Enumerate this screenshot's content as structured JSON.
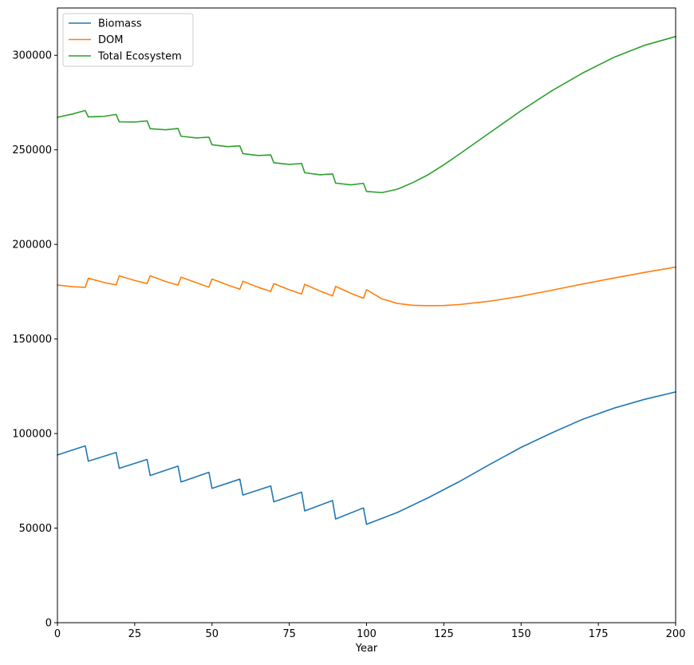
{
  "chart_data": {
    "type": "line",
    "title": "",
    "xlabel": "Year",
    "ylabel": "",
    "xlim": [
      0,
      200
    ],
    "ylim": [
      0,
      325000
    ],
    "xticks": [
      0,
      25,
      50,
      75,
      100,
      125,
      150,
      175,
      200
    ],
    "yticks": [
      0,
      50000,
      100000,
      150000,
      200000,
      250000,
      300000
    ],
    "grid": false,
    "legend_position": "top-left",
    "series": [
      {
        "name": "Biomass",
        "color": "#1f77b4",
        "x": [
          0,
          9,
          10,
          19,
          20,
          29,
          30,
          39,
          40,
          49,
          50,
          59,
          60,
          69,
          70,
          79,
          80,
          89,
          90,
          99,
          100,
          110,
          120,
          130,
          140,
          150,
          160,
          170,
          180,
          190,
          200
        ],
        "y": [
          88700,
          93500,
          85400,
          90000,
          81600,
          86300,
          77800,
          82800,
          74400,
          79500,
          71000,
          75900,
          67500,
          72300,
          63900,
          69000,
          59100,
          64600,
          54800,
          60700,
          52000,
          58300,
          66100,
          74600,
          83800,
          92700,
          100400,
          107600,
          113400,
          118100,
          122000
        ]
      },
      {
        "name": "DOM",
        "color": "#ff7f0e",
        "x": [
          0,
          5,
          9,
          10,
          15,
          19,
          20,
          25,
          29,
          30,
          35,
          39,
          40,
          45,
          49,
          50,
          55,
          59,
          60,
          65,
          69,
          70,
          75,
          79,
          80,
          85,
          89,
          90,
          95,
          99,
          100,
          105,
          110,
          115,
          120,
          125,
          130,
          140,
          150,
          160,
          170,
          180,
          190,
          200
        ],
        "y": [
          178500,
          177600,
          177300,
          182100,
          179900,
          178600,
          183400,
          180900,
          179300,
          183400,
          180400,
          178500,
          182700,
          179700,
          177400,
          181700,
          178600,
          176300,
          180500,
          177300,
          175100,
          179300,
          176000,
          173800,
          178900,
          175300,
          172800,
          177800,
          174100,
          171500,
          176100,
          171200,
          168800,
          167800,
          167600,
          167700,
          168200,
          170000,
          172600,
          175800,
          179100,
          182200,
          185200,
          188000
        ]
      },
      {
        "name": "Total Ecosystem",
        "color": "#2ca02c",
        "x": [
          0,
          5,
          9,
          10,
          15,
          19,
          20,
          25,
          29,
          30,
          35,
          39,
          40,
          45,
          49,
          50,
          55,
          59,
          60,
          65,
          69,
          70,
          75,
          79,
          80,
          85,
          89,
          90,
          95,
          99,
          100,
          105,
          110,
          115,
          120,
          125,
          130,
          140,
          150,
          160,
          170,
          180,
          190,
          200
        ],
        "y": [
          267200,
          269000,
          270800,
          267400,
          267700,
          268700,
          264800,
          264700,
          265300,
          261200,
          260600,
          261300,
          257200,
          256300,
          256700,
          252700,
          251700,
          252100,
          248000,
          247000,
          247300,
          243200,
          242300,
          242800,
          237900,
          236800,
          237300,
          232400,
          231500,
          232300,
          228000,
          227400,
          229200,
          232700,
          236900,
          242100,
          247700,
          259200,
          270700,
          281300,
          290700,
          298900,
          305300,
          309900
        ]
      }
    ]
  }
}
